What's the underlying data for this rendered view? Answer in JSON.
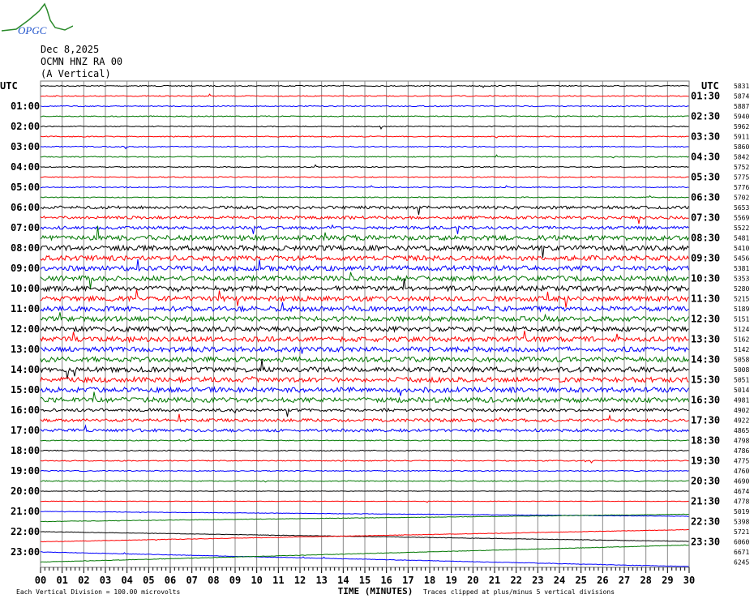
{
  "header": {
    "logo_text": "OPGC",
    "date": "Dec 8,2025",
    "station": "OCMN HNZ RA 00",
    "component": "(A Vertical)"
  },
  "chart_data": {
    "type": "line",
    "title": "Dec 8,2025 OCMN HNZ RA 00 (A Vertical)",
    "xlabel": "TIME (MINUTES)",
    "xlim": [
      0,
      30
    ],
    "x_ticks": [
      "00",
      "01",
      "02",
      "03",
      "04",
      "05",
      "06",
      "07",
      "08",
      "09",
      "10",
      "11",
      "12",
      "13",
      "14",
      "15",
      "16",
      "17",
      "18",
      "19",
      "20",
      "21",
      "22",
      "23",
      "24",
      "25",
      "26",
      "27",
      "28",
      "29",
      "30"
    ],
    "left_axis_title": "UTC",
    "right_axis_title": "UTC",
    "left_labels": [
      "01:00",
      "02:00",
      "03:00",
      "04:00",
      "05:00",
      "06:00",
      "07:00",
      "08:00",
      "09:00",
      "10:00",
      "11:00",
      "12:00",
      "13:00",
      "14:00",
      "15:00",
      "16:00",
      "17:00",
      "18:00",
      "19:00",
      "20:00",
      "21:00",
      "22:00",
      "23:00"
    ],
    "right_labels": [
      "01:30",
      "02:30",
      "03:30",
      "04:30",
      "05:30",
      "06:30",
      "07:30",
      "08:30",
      "09:30",
      "10:30",
      "11:30",
      "12:30",
      "13:30",
      "14:30",
      "15:30",
      "16:30",
      "17:30",
      "18:30",
      "19:30",
      "20:30",
      "21:30",
      "22:30",
      "23:30"
    ],
    "trace_values": [
      "5831",
      "5874",
      "5887",
      "5940",
      "5962",
      "5911",
      "5860",
      "5842",
      "5752",
      "5775",
      "5776",
      "5702",
      "5653",
      "5569",
      "5522",
      "5481",
      "5410",
      "5456",
      "5381",
      "5353",
      "5280",
      "5215",
      "5189",
      "5151",
      "5124",
      "5162",
      "5142",
      "5058",
      "5008",
      "5051",
      "5014",
      "4981",
      "4902",
      "4922",
      "4865",
      "4798",
      "4786",
      "4775",
      "4760",
      "4690",
      "4674",
      "4778",
      "5019",
      "5398",
      "5721",
      "6060",
      "6671",
      "6245"
    ],
    "trace_colors": [
      "#000000",
      "#ff0000",
      "#0000ff",
      "#007700"
    ],
    "grid": true,
    "footer_left": "Each Vertical Division =  100.00 microvolts",
    "footer_right": "Traces clipped at plus/minus 5 vertical divisions"
  }
}
